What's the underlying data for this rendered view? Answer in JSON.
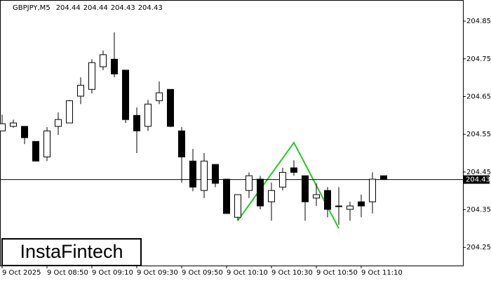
{
  "chart_data": {
    "type": "candlestick",
    "title": "GBPJPY,M5",
    "watermark": "InstaFintech",
    "categories": [
      "9 Oct 2025",
      null,
      null,
      null,
      "9 Oct 08:50",
      null,
      null,
      null,
      "9 Oct 09:10",
      null,
      null,
      null,
      "9 Oct 09:30",
      null,
      null,
      null,
      "9 Oct 09:50",
      null,
      null,
      null,
      "9 Oct 10:10",
      null,
      null,
      null,
      "9 Oct 10:30",
      null,
      null,
      null,
      "9 Oct 10:50",
      null,
      null,
      null,
      "9 Oct 11:10",
      null,
      null
    ],
    "open": [
      204.559,
      204.571,
      204.571,
      204.531,
      204.49,
      204.571,
      204.58,
      204.651,
      204.669,
      204.729,
      204.749,
      204.72,
      204.6,
      204.571,
      204.639,
      204.669,
      204.559,
      204.479,
      204.401,
      204.47,
      204.431,
      204.33,
      204.401,
      204.431,
      204.371,
      204.41,
      204.461,
      204.44,
      204.381,
      204.401,
      204.36,
      204.351,
      204.371,
      204.371,
      204.44
    ],
    "high": [
      204.602,
      204.589,
      204.571,
      204.531,
      204.569,
      204.608,
      204.641,
      204.701,
      204.749,
      204.772,
      204.82,
      204.72,
      204.621,
      204.641,
      204.69,
      204.669,
      204.569,
      204.511,
      204.5,
      204.47,
      204.431,
      204.39,
      204.449,
      204.44,
      204.422,
      204.461,
      204.481,
      204.44,
      204.42,
      204.41,
      204.41,
      204.371,
      204.39,
      204.449,
      204.44
    ],
    "low": [
      204.559,
      204.567,
      204.524,
      204.479,
      204.479,
      204.548,
      204.58,
      204.63,
      204.658,
      204.72,
      204.701,
      204.58,
      204.5,
      204.559,
      204.63,
      204.569,
      204.422,
      204.399,
      204.381,
      204.41,
      204.34,
      204.321,
      204.381,
      204.351,
      204.321,
      204.401,
      204.44,
      204.321,
      204.36,
      204.33,
      204.31,
      204.321,
      204.33,
      204.34,
      204.43
    ],
    "close": [
      204.578,
      204.58,
      204.541,
      204.479,
      204.559,
      204.589,
      204.639,
      204.68,
      204.74,
      204.761,
      204.71,
      204.589,
      204.559,
      204.63,
      204.66,
      204.571,
      204.49,
      204.41,
      204.479,
      204.42,
      204.34,
      204.39,
      204.44,
      204.36,
      204.401,
      204.449,
      204.449,
      204.371,
      204.39,
      204.351,
      204.36,
      204.36,
      204.36,
      204.431,
      204.43
    ],
    "price_line": 204.43,
    "ylim": [
      204.202,
      204.906
    ],
    "yticks": [
      204.25,
      204.35,
      204.45,
      204.55,
      204.65,
      204.75,
      204.85
    ]
  }
}
